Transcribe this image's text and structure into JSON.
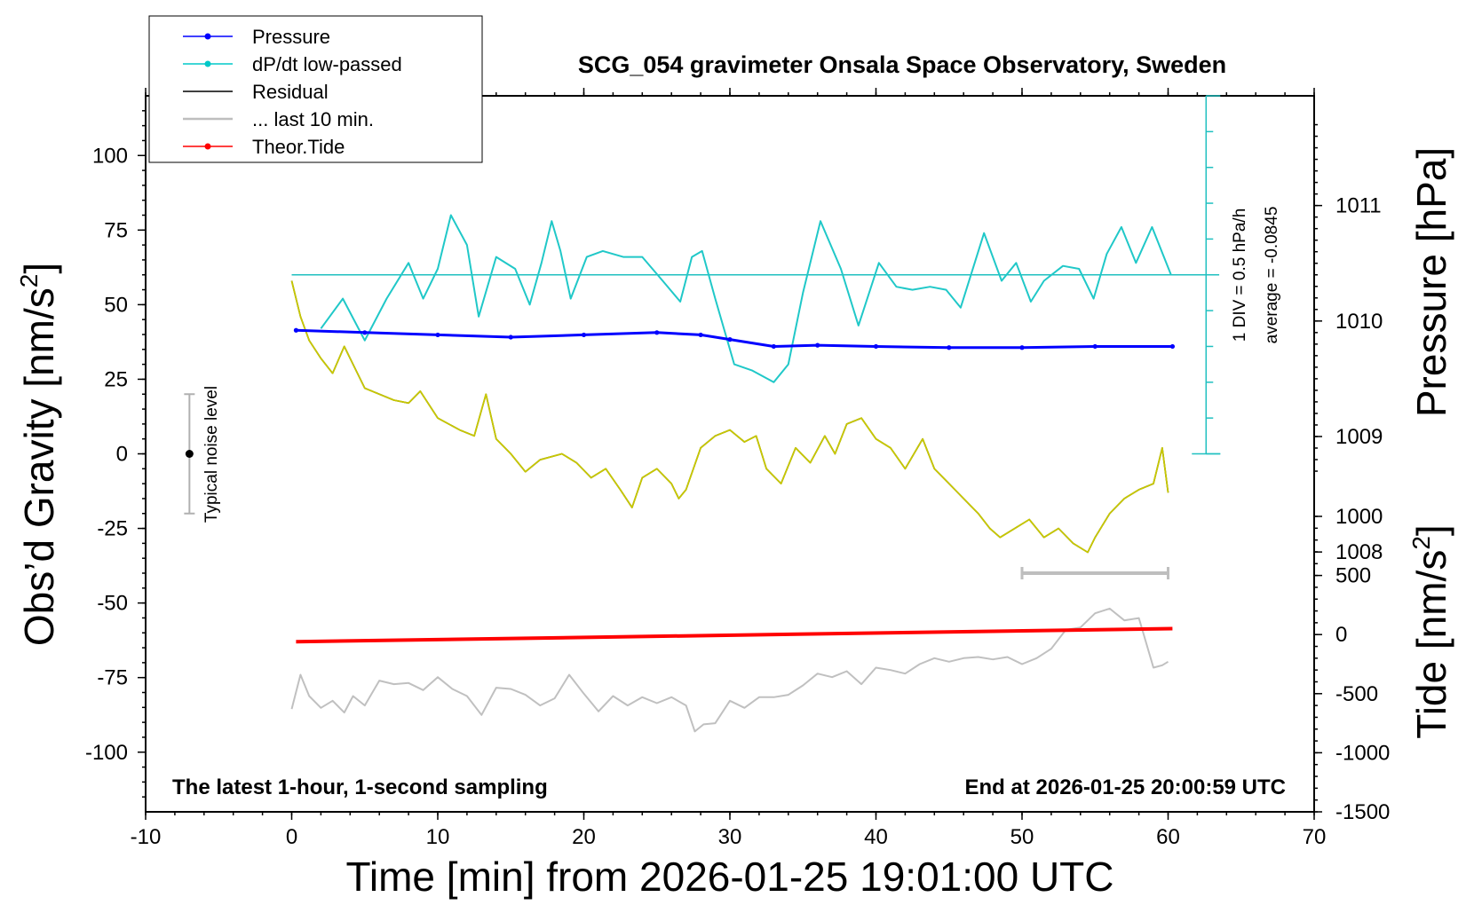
{
  "chart_data": {
    "type": "line",
    "title": "SCG_054 gravimeter Onsala Space Observatory, Sweden",
    "xlabel": "Time [min] from 2026-01-25 19:01:00 UTC",
    "ylabel_left": "Obs’d Gravity [nm/s",
    "ylabel_left_sup": "2",
    "ylabel_left_end": "]",
    "ylabel_right_pressure": "Pressure [hPa]",
    "ylabel_right_tide": "Tide [nm/s",
    "ylabel_right_tide_sup": "2",
    "ylabel_right_tide_end": "]",
    "xlim": [
      -10,
      70
    ],
    "ylim_left": [
      -120,
      120
    ],
    "pressure_lim": [
      1005.75,
      1011.95
    ],
    "tide_lim": [
      -1500,
      1000
    ],
    "x_ticks": [
      "-10",
      "0",
      "10",
      "20",
      "30",
      "40",
      "50",
      "60",
      "70"
    ],
    "y_ticks_left": [
      "100",
      "75",
      "50",
      "25",
      "0",
      "-25",
      "-50",
      "-75",
      "-100"
    ],
    "pressure_ticks": [
      "1011",
      "1010",
      "1009",
      "1008"
    ],
    "tide_ticks": [
      "1000",
      "500",
      "0",
      "-500",
      "-1000",
      "-1500"
    ],
    "bottom_left_note": "The latest 1-hour, 1-second sampling",
    "bottom_right_note": "End at 2026-01-25 20:00:59 UTC",
    "noise_label": "Typical noise level",
    "noise_range": [
      -20,
      20
    ],
    "dpdt_scale_note": "1 DIV = 0.5 hPa/h",
    "dpdt_average_note": "average = -0.0845",
    "last10_range_min": [
      50,
      60
    ],
    "legend": [
      {
        "name": "Pressure",
        "color": "#0000ff",
        "marker": true
      },
      {
        "name": "dP/dt low-passed",
        "color": "#00c8c8",
        "marker": true
      },
      {
        "name": "Residual",
        "color": "#000000",
        "marker": false
      },
      {
        "name": "... last 10 min.",
        "color": "#bebebe",
        "marker": false
      },
      {
        "name": "Theor.Tide",
        "color": "#ff0000",
        "marker": true
      }
    ],
    "series": [
      {
        "name": "Pressure",
        "axis": "pressure",
        "x": [
          0.3,
          5,
          10,
          15,
          20,
          25,
          28,
          30,
          33,
          36,
          40,
          45,
          50,
          55,
          60.3
        ],
        "y": [
          1009.92,
          1009.9,
          1009.88,
          1009.86,
          1009.88,
          1009.9,
          1009.88,
          1009.84,
          1009.78,
          1009.79,
          1009.78,
          1009.77,
          1009.77,
          1009.78,
          1009.78
        ]
      },
      {
        "name": "dP/dt low-passed",
        "axis": "gravity",
        "x": [
          2,
          3.5,
          5,
          6.5,
          8,
          9,
          10,
          10.9,
          12,
          12.8,
          14,
          15.3,
          16.3,
          17.1,
          17.8,
          18.4,
          19.1,
          20.2,
          21.3,
          22.7,
          24,
          25.4,
          26.6,
          27.4,
          28.1,
          29,
          30.3,
          31.5,
          33,
          34,
          35,
          36.2,
          37.6,
          38.8,
          40.2,
          41.4,
          42.5,
          43.7,
          44.8,
          45.8,
          47.4,
          48.6,
          49.6,
          50.6,
          51.5,
          52.8,
          53.9,
          54.9,
          55.8,
          56.8,
          57.8,
          58.9,
          60.2
        ],
        "y": [
          42,
          52,
          38,
          52,
          64,
          52,
          62,
          80,
          70,
          46,
          66,
          62,
          50,
          64,
          78,
          68,
          52,
          66,
          68,
          66,
          66,
          58,
          51,
          66,
          68,
          52,
          30,
          28,
          24,
          30,
          54,
          78,
          62,
          43,
          64,
          56,
          55,
          56,
          55,
          49,
          74,
          58,
          64,
          51,
          58,
          63,
          62,
          52,
          67,
          76,
          64,
          76,
          60
        ]
      },
      {
        "name": "Residual",
        "axis": "gravity",
        "x": [
          0,
          0.6,
          1.2,
          2,
          2.8,
          3.6,
          4.2,
          5,
          6,
          7,
          8,
          8.8,
          10,
          11.5,
          12.5,
          13.3,
          14,
          15,
          16,
          17,
          18.5,
          19.5,
          20.5,
          21.5,
          22.5,
          23.3,
          24,
          25,
          26,
          26.5,
          27,
          28,
          29,
          30,
          31,
          31.8,
          32.5,
          33.5,
          34.5,
          35.5,
          36.5,
          37.2,
          38,
          39,
          40,
          41,
          42,
          43.2,
          44,
          45,
          46,
          47,
          47.8,
          48.5,
          49.5,
          50.5,
          51.5,
          52.5,
          53.5,
          54.5,
          55,
          56,
          57,
          58,
          59,
          59.6,
          60
        ],
        "y": [
          58,
          46,
          38,
          32,
          27,
          36,
          30,
          22,
          20,
          18,
          17,
          21,
          12,
          8,
          6,
          20,
          5,
          0,
          -6,
          -2,
          0,
          -3,
          -8,
          -5,
          -12,
          -18,
          -8,
          -5,
          -10,
          -15,
          -12,
          2,
          6,
          8,
          4,
          6,
          -5,
          -10,
          2,
          -3,
          6,
          0,
          10,
          12,
          5,
          2,
          -5,
          5,
          -5,
          -10,
          -15,
          -20,
          -25,
          -28,
          -25,
          -22,
          -28,
          -25,
          -30,
          -33,
          -28,
          -20,
          -15,
          -12,
          -10,
          2,
          -13
        ]
      },
      {
        "name": "... last 10 min.",
        "axis": "tide",
        "x": [
          0,
          0.6,
          1.2,
          2,
          2.8,
          3.6,
          4.2,
          5,
          6,
          7,
          8,
          9,
          10,
          11,
          12,
          13,
          14,
          15,
          16,
          17,
          18,
          19,
          20,
          21,
          22,
          23,
          24,
          25,
          26,
          27,
          27.6,
          28.2,
          29,
          30,
          31,
          32,
          33,
          34,
          35,
          36,
          37,
          38,
          39,
          40,
          41,
          42,
          43,
          44,
          45,
          46,
          47,
          48,
          49,
          50,
          51,
          52,
          53,
          54,
          55,
          56,
          57,
          58,
          59,
          59.6,
          60
        ],
        "y": [
          -630,
          -340,
          -520,
          -620,
          -560,
          -660,
          -520,
          -600,
          -390,
          -420,
          -410,
          -470,
          -360,
          -460,
          -520,
          -680,
          -450,
          -460,
          -510,
          -600,
          -540,
          -340,
          -500,
          -650,
          -520,
          -600,
          -530,
          -580,
          -530,
          -600,
          -820,
          -760,
          -750,
          -560,
          -620,
          -530,
          -530,
          -510,
          -430,
          -330,
          -360,
          -310,
          -420,
          -280,
          -300,
          -330,
          -250,
          -200,
          -230,
          -200,
          -190,
          -210,
          -190,
          -250,
          -200,
          -120,
          40,
          60,
          180,
          220,
          120,
          140,
          -280,
          -260,
          -230
        ]
      },
      {
        "name": "Theor.Tide",
        "axis": "tide",
        "x": [
          0.3,
          60.3
        ],
        "y": [
          -60,
          50
        ]
      }
    ]
  }
}
